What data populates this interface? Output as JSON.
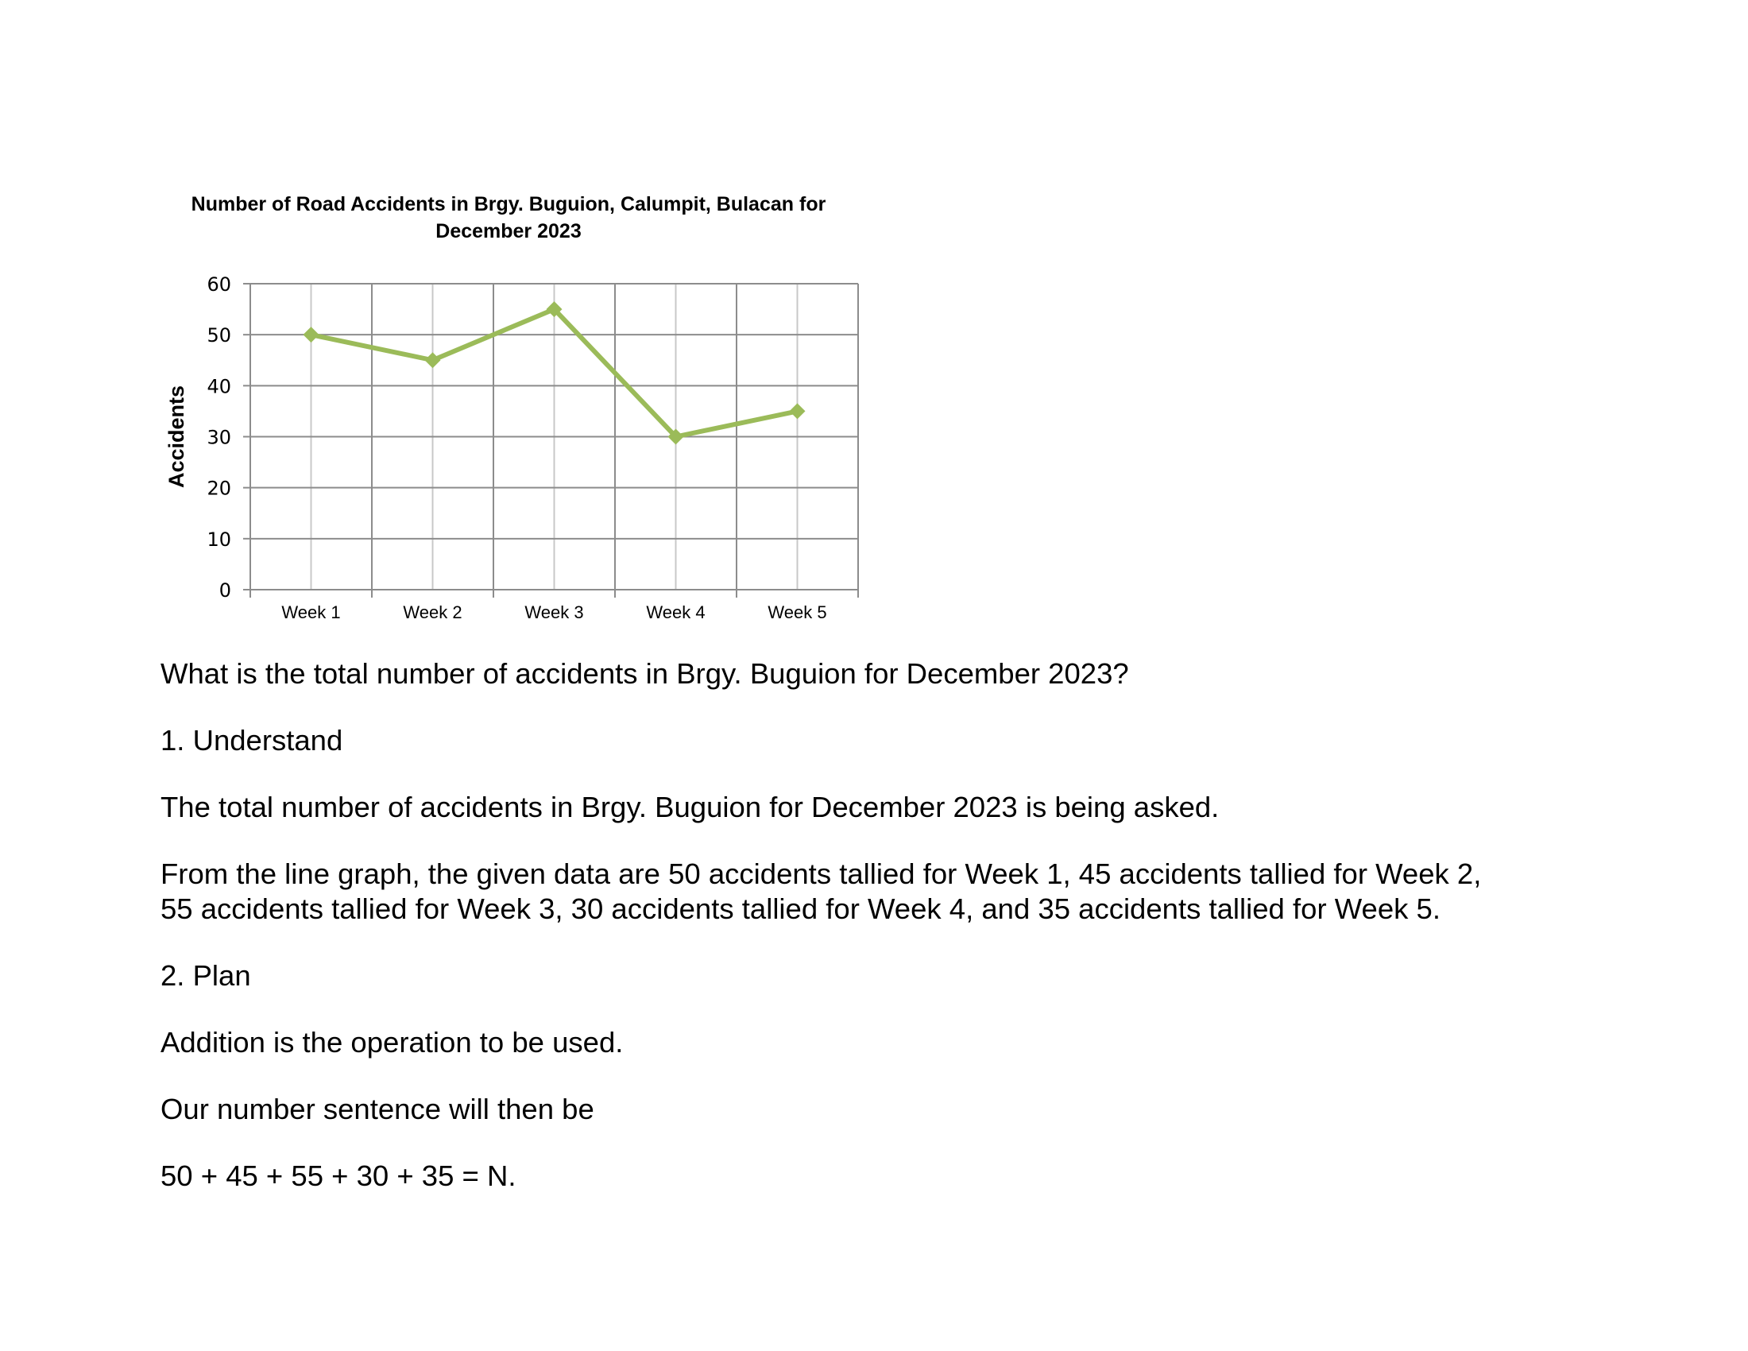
{
  "chart_data": {
    "type": "line",
    "title_lines": [
      "Number of Road Accidents in Brgy. Buguion, Calumpit, Bulacan for",
      "December 2023"
    ],
    "xlabel": "",
    "ylabel": "Accidents",
    "categories": [
      "Week 1",
      "Week 2",
      "Week 3",
      "Week 4",
      "Week 5"
    ],
    "series": [
      {
        "values": [
          50,
          45,
          55,
          30,
          35
        ],
        "color": "#9bbb59",
        "marker": "diamond"
      }
    ],
    "ylim": [
      0,
      60
    ],
    "yticks": [
      0,
      10,
      20,
      30,
      40,
      50,
      60
    ],
    "grid": true,
    "legend": "none"
  },
  "document": {
    "question": "What is the total number of accidents in Brgy. Buguion for December 2023?",
    "step1_heading": "1. Understand",
    "step1_text": "The total number of accidents in Brgy. Buguion for December 2023 is being asked.",
    "given_line1": "From the line graph, the given data are 50 accidents tallied for Week 1, 45 accidents tallied for Week 2,",
    "given_line2": "55 accidents tallied for Week 3, 30 accidents tallied for Week 4, and 35 accidents tallied for Week 5.",
    "step2_heading": "2. Plan",
    "step2_text": "Addition is the operation to be used.",
    "sentence_intro": "Our number sentence will then be",
    "number_sentence": "50 + 45 + 55 + 30 + 35 = N."
  }
}
